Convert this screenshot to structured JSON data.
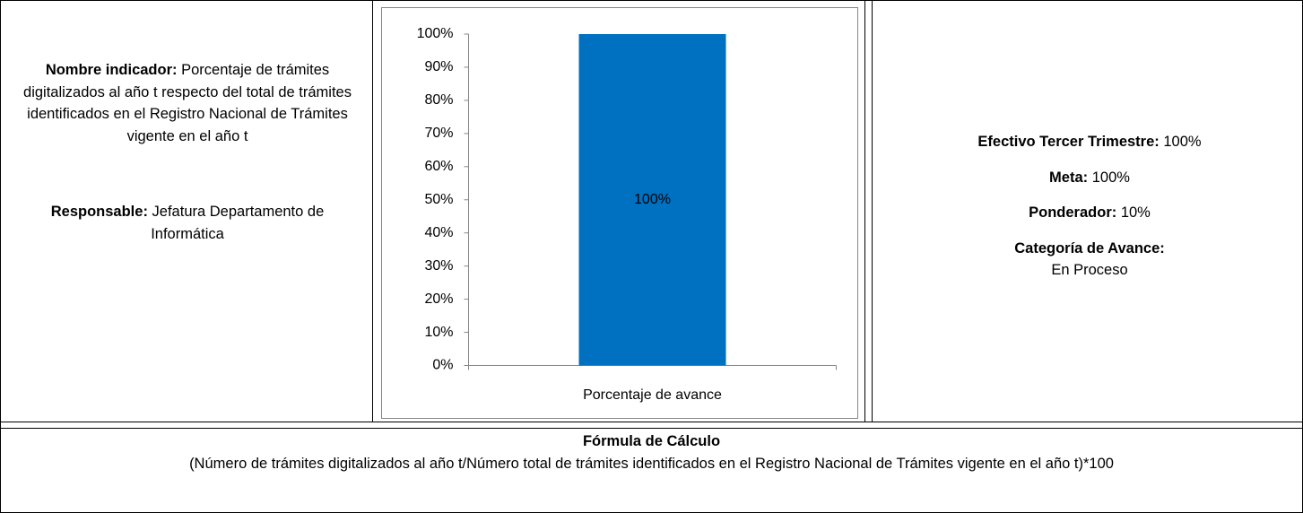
{
  "indicator": {
    "name_label": "Nombre indicador:",
    "name": "Porcentaje de trámites digitalizados al año t respecto del total de trámites identificados en el Registro Nacional de Trámites vigente en el año t",
    "responsible_label": "Responsable:",
    "responsible": "Jefatura Departamento de Informática"
  },
  "chart_data": {
    "type": "bar",
    "categories": [
      "Porcentaje de avance"
    ],
    "values": [
      100
    ],
    "value_labels": [
      "100%"
    ],
    "color": "#0070c0",
    "ylim": [
      0,
      100
    ],
    "yticks": [
      {
        "value": 0,
        "label": "0%"
      },
      {
        "value": 10,
        "label": "10%"
      },
      {
        "value": 20,
        "label": "20%"
      },
      {
        "value": 30,
        "label": "30%"
      },
      {
        "value": 40,
        "label": "40%"
      },
      {
        "value": 50,
        "label": "50%"
      },
      {
        "value": 60,
        "label": "60%"
      },
      {
        "value": 70,
        "label": "70%"
      },
      {
        "value": 80,
        "label": "80%"
      },
      {
        "value": 90,
        "label": "90%"
      },
      {
        "value": 100,
        "label": "100%"
      }
    ],
    "grid": false
  },
  "summary": {
    "effective_label": "Efectivo Tercer Trimestre:",
    "effective": "100%",
    "goal_label": "Meta:",
    "goal": "100%",
    "weight_label": "Ponderador:",
    "weight": "10%",
    "category_label": "Categoría de Avance:",
    "category": "En Proceso"
  },
  "formula": {
    "title": "Fórmula de Cálculo",
    "text": "(Número de trámites digitalizados al año t/Número total de trámites identificados en el Registro Nacional de Trámites vigente en el año t)*100"
  }
}
